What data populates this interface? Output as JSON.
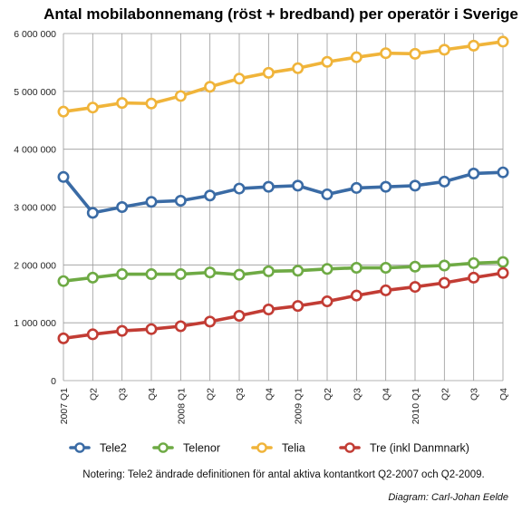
{
  "chart_data": {
    "type": "line",
    "title": "Antal mobilabonnemang (röst + bredband) per operatör i Sverige",
    "ylim": [
      0,
      6000000
    ],
    "yticks": [
      0,
      1000000,
      2000000,
      3000000,
      4000000,
      5000000,
      6000000
    ],
    "ytick_labels": [
      "0",
      "1 000 000",
      "2 000 000",
      "3 000 000",
      "4 000 000",
      "5 000 000",
      "6 000 000"
    ],
    "categories": [
      "2007 Q1",
      "Q2",
      "Q3",
      "Q4",
      "2008 Q1",
      "Q2",
      "Q3",
      "Q4",
      "2009 Q1",
      "Q2",
      "Q3",
      "Q4",
      "2010 Q1",
      "Q2",
      "Q3",
      "Q4"
    ],
    "grid": true,
    "legend_position": "bottom",
    "series": [
      {
        "name": "Tele2",
        "color": "#3a6ba5",
        "values": [
          3520000,
          2900000,
          3000000,
          3090000,
          3110000,
          3200000,
          3320000,
          3350000,
          3370000,
          3220000,
          3330000,
          3350000,
          3370000,
          3440000,
          3580000,
          3600000
        ]
      },
      {
        "name": "Telenor",
        "color": "#6eaa44",
        "values": [
          1720000,
          1780000,
          1840000,
          1840000,
          1840000,
          1870000,
          1830000,
          1890000,
          1900000,
          1930000,
          1950000,
          1950000,
          1970000,
          1990000,
          2030000,
          2050000
        ]
      },
      {
        "name": "Telia",
        "color": "#f0b43a",
        "values": [
          4650000,
          4720000,
          4800000,
          4790000,
          4920000,
          5080000,
          5220000,
          5320000,
          5400000,
          5510000,
          5590000,
          5660000,
          5650000,
          5720000,
          5790000,
          5860000
        ]
      },
      {
        "name": "Tre (inkl Danmnark)",
        "color": "#c23c34",
        "values": [
          730000,
          800000,
          860000,
          890000,
          940000,
          1020000,
          1120000,
          1230000,
          1290000,
          1370000,
          1470000,
          1560000,
          1620000,
          1690000,
          1780000,
          1860000
        ]
      }
    ],
    "note": "Notering: Tele2 ändrade definitionen för antal aktiva kontantkort Q2-2007 och Q2-2009.",
    "credit": "Diagram: Carl-Johan Eelde"
  }
}
